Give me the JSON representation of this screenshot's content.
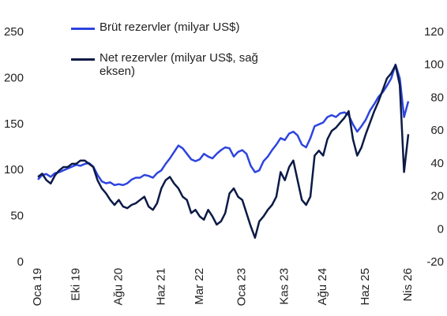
{
  "chart_data": {
    "type": "line",
    "categories": [
      "Oca 19",
      null,
      null,
      null,
      null,
      null,
      null,
      null,
      null,
      "Eki 19",
      null,
      null,
      null,
      null,
      null,
      null,
      null,
      null,
      null,
      "Ağu 20",
      null,
      null,
      null,
      null,
      null,
      null,
      null,
      null,
      null,
      "Haz 21",
      null,
      null,
      null,
      null,
      null,
      null,
      null,
      null,
      "Mar 22",
      null,
      null,
      null,
      null,
      null,
      null,
      null,
      null,
      null,
      "Oca 23",
      null,
      null,
      null,
      null,
      null,
      null,
      null,
      null,
      null,
      "Kas 23",
      null,
      null,
      null,
      null,
      null,
      null,
      null,
      null,
      "Ağu 24",
      null,
      null,
      null,
      null,
      null,
      null,
      null,
      null,
      null,
      "Haz 25",
      null,
      null,
      null,
      null,
      null,
      null,
      null,
      null,
      null,
      "Nis 26"
    ],
    "series": [
      {
        "name": "Brüt rezervler (milyar US$)",
        "color": "#2d44e0",
        "axis": "y",
        "values": [
          90,
          95,
          96,
          93,
          97,
          98,
          100,
          102,
          104,
          106,
          105,
          107,
          108,
          104,
          95,
          88,
          86,
          87,
          84,
          85,
          84,
          86,
          90,
          92,
          92,
          95,
          94,
          92,
          97,
          100,
          107,
          113,
          120,
          127,
          124,
          118,
          112,
          110,
          112,
          118,
          115,
          113,
          118,
          122,
          125,
          124,
          115,
          120,
          122,
          118,
          105,
          98,
          100,
          110,
          115,
          122,
          128,
          135,
          133,
          140,
          142,
          138,
          128,
          125,
          135,
          148,
          150,
          152,
          158,
          160,
          158,
          162,
          163,
          160,
          150,
          142,
          148,
          155,
          165,
          172,
          180,
          185,
          192,
          200,
          215,
          200,
          158,
          175
        ]
      },
      {
        "name": "Net rezervler (milyar US$, sağ eksen)",
        "color": "#0c1a46",
        "axis": "y2",
        "values": [
          32,
          34,
          30,
          28,
          33,
          36,
          38,
          38,
          40,
          40,
          42,
          42,
          40,
          38,
          30,
          25,
          22,
          18,
          15,
          18,
          14,
          13,
          15,
          16,
          18,
          20,
          14,
          12,
          16,
          25,
          30,
          32,
          28,
          25,
          20,
          18,
          10,
          12,
          8,
          6,
          12,
          8,
          3,
          5,
          10,
          22,
          25,
          20,
          18,
          10,
          2,
          -5,
          5,
          8,
          12,
          15,
          20,
          35,
          30,
          38,
          42,
          30,
          18,
          15,
          20,
          45,
          48,
          45,
          55,
          60,
          62,
          65,
          68,
          72,
          55,
          45,
          50,
          58,
          65,
          72,
          78,
          85,
          92,
          95,
          100,
          88,
          35,
          58
        ]
      }
    ],
    "ylim": [
      0,
      250
    ],
    "yticks": [
      0,
      50,
      100,
      150,
      200,
      250
    ],
    "y2lim": [
      -20,
      120
    ],
    "y2ticks": [
      -20,
      0,
      20,
      40,
      60,
      80,
      100,
      120
    ],
    "grid": false
  }
}
